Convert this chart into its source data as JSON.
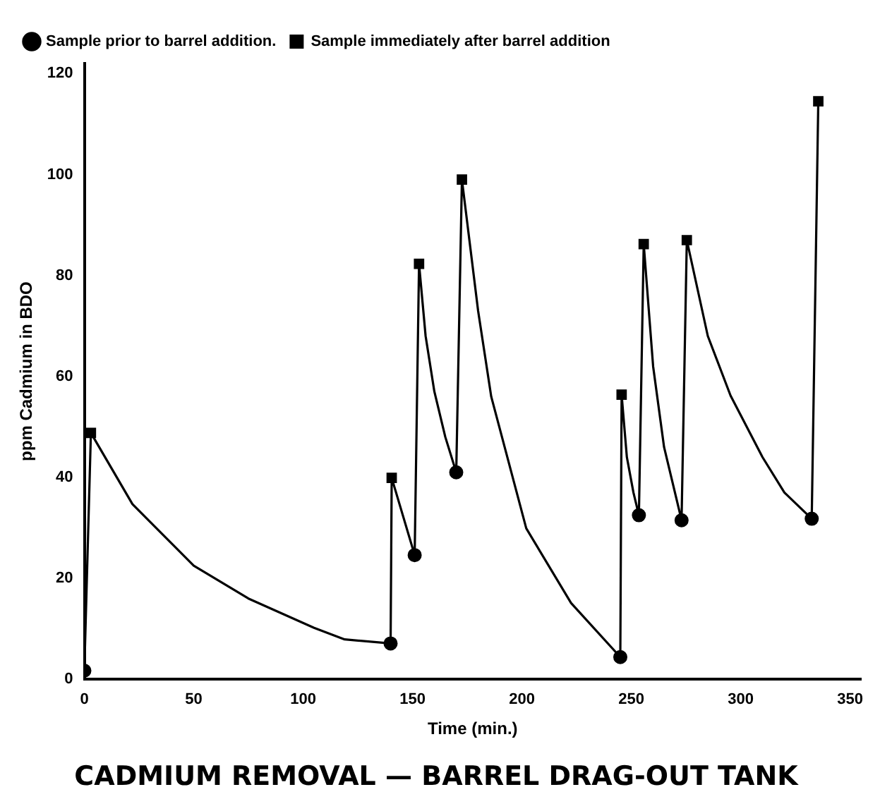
{
  "chart_data": {
    "type": "line",
    "title": "CADMIUM REMOVAL — BARREL DRAG-OUT TANK",
    "xlabel": "Time (min.)",
    "ylabel": "ppm Cadmium in BDO",
    "xlim": [
      0,
      355
    ],
    "xticks": [
      0,
      50,
      100,
      150,
      200,
      250,
      300,
      350
    ],
    "ylim": [
      0,
      122
    ],
    "yticks": [
      0,
      20,
      40,
      60,
      80,
      100,
      120
    ],
    "grid": false,
    "legend": "top left",
    "series": [
      {
        "type": "line",
        "color": "#000000",
        "marker": "none",
        "x": [
          0,
          3,
          22,
          50,
          75,
          105,
          119,
          140,
          140.5,
          151,
          153,
          156,
          160,
          165,
          170,
          172.6,
          180,
          186,
          202,
          222.5,
          245,
          245.6,
          248,
          251,
          253.5,
          255.7,
          260,
          265,
          273,
          275.4,
          285,
          295.4,
          310,
          320,
          332.5,
          335.5
        ],
        "values": [
          1.7,
          48.8,
          34.7,
          22.5,
          16,
          10.2,
          7.9,
          7.1,
          39.9,
          24.6,
          82.3,
          68,
          57,
          48,
          41,
          99,
          73,
          56,
          29.9,
          15.1,
          4.4,
          56.4,
          44,
          37,
          32.5,
          86.2,
          62,
          46,
          31.5,
          87,
          68,
          56.2,
          44,
          37,
          31.8,
          114.5
        ]
      },
      {
        "type": "scatter",
        "name": "Sample prior to barrel addition.",
        "color": "#000000",
        "marker": "circle",
        "x": [
          0,
          140,
          151,
          170,
          245,
          253.5,
          273,
          332.5
        ],
        "values": [
          1.7,
          7.1,
          24.6,
          41,
          4.4,
          32.5,
          31.5,
          31.8
        ]
      },
      {
        "type": "scatter",
        "name": "Sample immediately after barrel addition",
        "color": "#000000",
        "marker": "square",
        "x": [
          3,
          140.5,
          153,
          172.6,
          245.6,
          255.7,
          275.4,
          335.5
        ],
        "values": [
          48.8,
          39.9,
          82.3,
          99,
          56.4,
          86.2,
          87,
          114.5
        ]
      }
    ]
  }
}
